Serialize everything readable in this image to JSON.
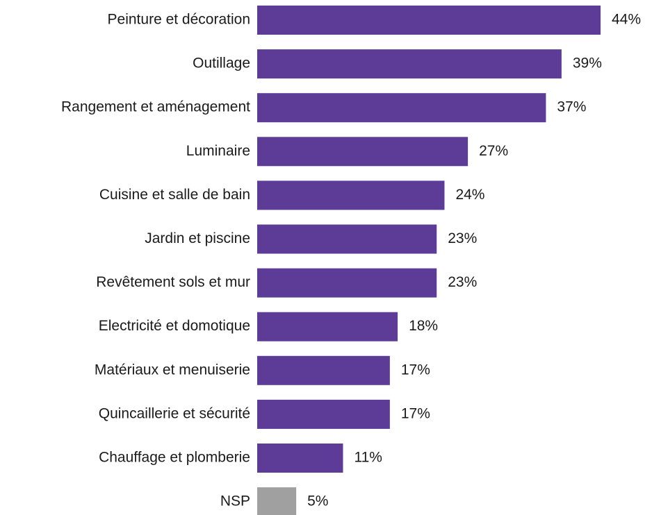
{
  "chart_data": {
    "type": "barh",
    "categories": [
      "Peinture et décoration",
      "Outillage",
      "Rangement et aménagement",
      "Luminaire",
      "Cuisine et salle de bain",
      "Jardin et piscine",
      "Revêtement sols et mur",
      "Electricité et domotique",
      "Matériaux et menuiserie",
      "Quincaillerie et sécurité",
      "Chauffage et plomberie",
      "NSP"
    ],
    "values": [
      44,
      39,
      37,
      27,
      24,
      23,
      23,
      18,
      17,
      17,
      11,
      5
    ],
    "value_labels": [
      "44%",
      "39%",
      "37%",
      "27%",
      "24%",
      "23%",
      "23%",
      "18%",
      "17%",
      "17%",
      "11%",
      "5%"
    ],
    "colors": [
      "#5c3c96",
      "#5c3c96",
      "#5c3c96",
      "#5c3c96",
      "#5c3c96",
      "#5c3c96",
      "#5c3c96",
      "#5c3c96",
      "#5c3c96",
      "#5c3c96",
      "#5c3c96",
      "#a0a0a0"
    ]
  }
}
